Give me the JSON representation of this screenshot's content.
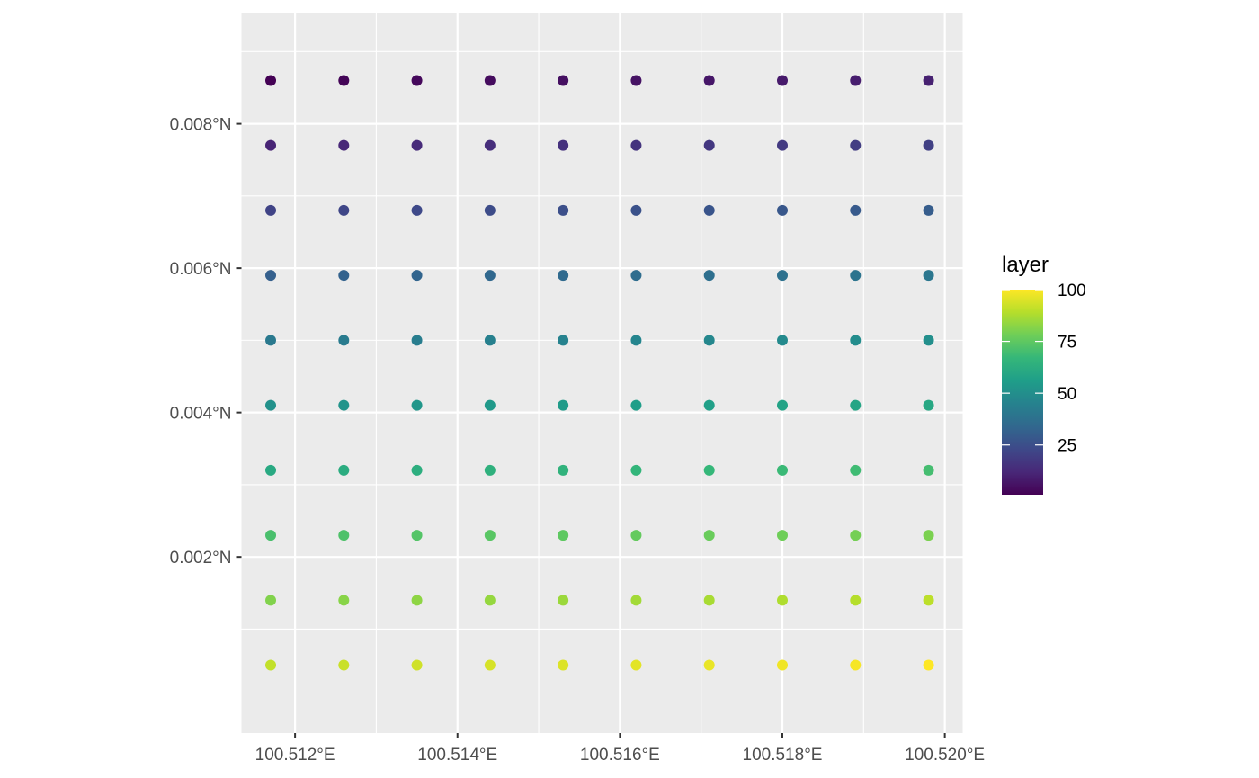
{
  "chart_data": {
    "type": "scatter",
    "title": "",
    "xlabel": "",
    "ylabel": "",
    "x_axis": {
      "range": [
        100.51134,
        100.52022
      ],
      "major_ticks": [
        100.512,
        100.514,
        100.516,
        100.518,
        100.52
      ],
      "minor_ticks": [
        100.513,
        100.515,
        100.517,
        100.519
      ],
      "tick_labels": [
        "100.512°E",
        "100.514°E",
        "100.516°E",
        "100.518°E",
        "100.520°E"
      ]
    },
    "y_axis": {
      "range": [
        -0.00044,
        0.00954
      ],
      "major_ticks": [
        0.002,
        0.004,
        0.006,
        0.008
      ],
      "minor_ticks": [
        0.001,
        0.003,
        0.005,
        0.007,
        0.009
      ],
      "tick_labels": [
        "0.002°N",
        "0.004°N",
        "0.006°N",
        "0.008°N"
      ]
    },
    "grid": true,
    "panel_background": "#ebebeb",
    "grid_color": "#ffffff",
    "x": [
      100.5117,
      100.5126,
      100.5135,
      100.5144,
      100.5153,
      100.5162,
      100.5171,
      100.518,
      100.5189,
      100.5198
    ],
    "y": [
      0.0086,
      0.0077,
      0.0068,
      0.0059,
      0.005,
      0.0041,
      0.0032,
      0.0023,
      0.0014,
      0.0005
    ],
    "value_rule": "layer = row_index * 10 + col_index + 1 (row 0 = top / northernmost, col 0 = westernmost)",
    "colorscale": "viridis",
    "colorscale_stops": [
      "#440154",
      "#482878",
      "#3e4989",
      "#31688e",
      "#26828e",
      "#1f9e89",
      "#35b779",
      "#6ece58",
      "#b5de2b",
      "#fde725"
    ],
    "legend": {
      "title": "layer",
      "placement": "right",
      "range": [
        1,
        100
      ],
      "labels": [
        {
          "value": 25,
          "text": "25"
        },
        {
          "value": 50,
          "text": "50"
        },
        {
          "value": 75,
          "text": "75"
        },
        {
          "value": 100,
          "text": "100"
        }
      ]
    }
  }
}
